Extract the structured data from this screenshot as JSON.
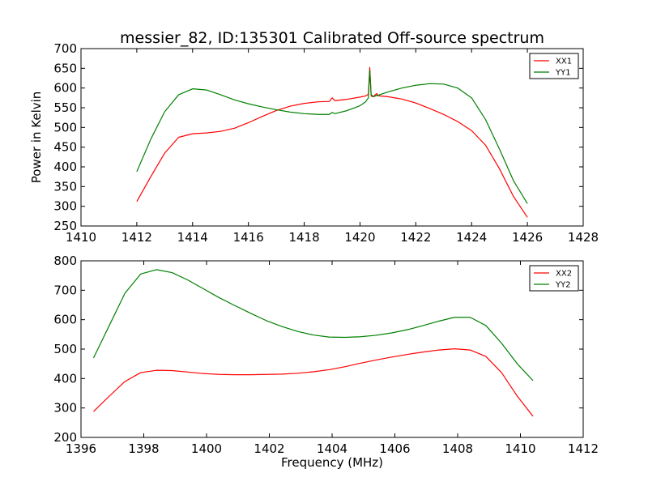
{
  "figure": {
    "title": "messier_82, ID:135301 Calibrated Off-source spectrum"
  },
  "chart_data": [
    {
      "type": "line",
      "title": "messier_82, ID:135301 Calibrated Off-source spectrum",
      "xlabel": "",
      "ylabel": "Power in Kelvin",
      "xlim": [
        1410,
        1428
      ],
      "ylim": [
        250,
        700
      ],
      "xticks": [
        1410,
        1412,
        1414,
        1416,
        1418,
        1420,
        1422,
        1424,
        1426,
        1428
      ],
      "yticks": [
        250,
        300,
        350,
        400,
        450,
        500,
        550,
        600,
        650,
        700
      ],
      "grid": false,
      "legend": "top-right",
      "series": [
        {
          "name": "XX1",
          "color": "#ff0000",
          "x": [
            1412.0,
            1412.5,
            1413.0,
            1413.5,
            1414.0,
            1414.5,
            1415.0,
            1415.5,
            1416.0,
            1416.5,
            1417.0,
            1417.5,
            1418.0,
            1418.5,
            1418.9,
            1419.0,
            1419.1,
            1419.5,
            1420.0,
            1420.2,
            1420.3,
            1420.35,
            1420.4,
            1420.45,
            1420.5,
            1420.6,
            1420.65,
            1420.7,
            1421.0,
            1421.5,
            1422.0,
            1422.5,
            1423.0,
            1423.5,
            1424.0,
            1424.5,
            1425.0,
            1425.5,
            1426.0
          ],
          "y": [
            312,
            375,
            435,
            475,
            484,
            486,
            490,
            498,
            512,
            528,
            543,
            554,
            561,
            565,
            566,
            575,
            568,
            571,
            577,
            580,
            584,
            652,
            580,
            578,
            580,
            586,
            581,
            580,
            578,
            572,
            562,
            548,
            533,
            515,
            492,
            455,
            395,
            325,
            272
          ]
        },
        {
          "name": "YY1",
          "color": "#008000",
          "x": [
            1412.0,
            1412.5,
            1413.0,
            1413.5,
            1414.0,
            1414.5,
            1415.0,
            1415.5,
            1416.0,
            1416.5,
            1417.0,
            1417.5,
            1418.0,
            1418.5,
            1418.9,
            1419.0,
            1419.1,
            1419.5,
            1420.0,
            1420.2,
            1420.3,
            1420.35,
            1420.4,
            1420.45,
            1420.5,
            1420.6,
            1420.65,
            1420.7,
            1421.0,
            1421.5,
            1422.0,
            1422.5,
            1423.0,
            1423.5,
            1424.0,
            1424.5,
            1425.0,
            1425.5,
            1426.0
          ],
          "y": [
            388,
            470,
            540,
            583,
            598,
            595,
            583,
            570,
            560,
            552,
            545,
            539,
            535,
            533,
            533,
            538,
            535,
            542,
            555,
            565,
            575,
            645,
            583,
            580,
            578,
            582,
            580,
            583,
            590,
            600,
            607,
            611,
            610,
            600,
            575,
            520,
            445,
            365,
            307
          ]
        }
      ]
    },
    {
      "type": "line",
      "title": "",
      "xlabel": "Frequency (MHz)",
      "ylabel": "",
      "xlim": [
        1396,
        1412
      ],
      "ylim": [
        200,
        800
      ],
      "xticks": [
        1396,
        1398,
        1400,
        1402,
        1404,
        1406,
        1408,
        1410,
        1412
      ],
      "yticks": [
        200,
        300,
        400,
        500,
        600,
        700,
        800
      ],
      "grid": false,
      "legend": "top-right",
      "series": [
        {
          "name": "XX2",
          "color": "#ff0000",
          "x": [
            1396.4,
            1396.9,
            1397.4,
            1397.9,
            1398.4,
            1398.9,
            1399.4,
            1399.9,
            1400.4,
            1400.9,
            1401.4,
            1401.9,
            1402.4,
            1402.9,
            1403.4,
            1403.9,
            1404.4,
            1404.9,
            1405.4,
            1405.9,
            1406.4,
            1406.9,
            1407.4,
            1407.9,
            1408.4,
            1408.9,
            1409.4,
            1409.9,
            1410.4
          ],
          "y": [
            288,
            340,
            390,
            420,
            428,
            427,
            422,
            417,
            414,
            413,
            413,
            414,
            415,
            418,
            423,
            430,
            440,
            452,
            463,
            473,
            482,
            490,
            497,
            501,
            497,
            475,
            420,
            340,
            272
          ]
        },
        {
          "name": "YY2",
          "color": "#008000",
          "x": [
            1396.4,
            1396.9,
            1397.4,
            1397.9,
            1398.4,
            1398.9,
            1399.4,
            1399.9,
            1400.4,
            1400.9,
            1401.4,
            1401.9,
            1402.4,
            1402.9,
            1403.4,
            1403.9,
            1404.4,
            1404.9,
            1405.4,
            1405.9,
            1406.4,
            1406.9,
            1407.4,
            1407.9,
            1408.4,
            1408.9,
            1409.4,
            1409.9,
            1410.4
          ],
          "y": [
            470,
            580,
            690,
            755,
            770,
            760,
            735,
            705,
            675,
            648,
            622,
            597,
            577,
            560,
            548,
            541,
            540,
            542,
            547,
            555,
            566,
            580,
            595,
            608,
            608,
            580,
            520,
            450,
            393
          ]
        }
      ]
    }
  ]
}
